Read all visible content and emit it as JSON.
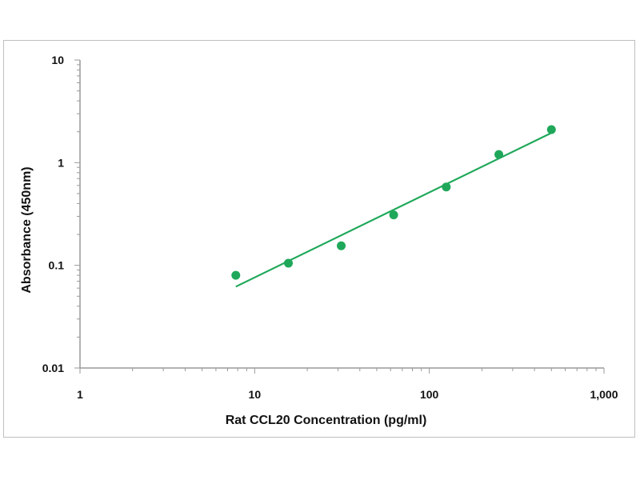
{
  "chart_data": {
    "type": "scatter",
    "title": "",
    "xlabel": "Rat CCL20 Concentration (pg/ml)",
    "ylabel": "Absorbance (450nm)",
    "x_scale": "log",
    "y_scale": "log",
    "xlim": [
      1,
      1000
    ],
    "ylim": [
      0.01,
      10
    ],
    "x_ticks": [
      1,
      10,
      100,
      1000
    ],
    "x_tick_labels": [
      "1",
      "10",
      "100",
      "1,000"
    ],
    "y_ticks": [
      0.01,
      0.1,
      1,
      10
    ],
    "y_tick_labels": [
      "0.01",
      "0.1",
      "1",
      "10"
    ],
    "grid": false,
    "color": "#1fa85a",
    "series": [
      {
        "x": [
          7.8,
          15.6,
          31.3,
          62.5,
          125,
          250,
          500
        ],
        "y": [
          0.08,
          0.105,
          0.155,
          0.31,
          0.58,
          1.2,
          2.1
        ]
      }
    ],
    "fit_line": {
      "x": [
        7.8,
        500
      ],
      "y": [
        0.062,
        1.95
      ]
    }
  }
}
